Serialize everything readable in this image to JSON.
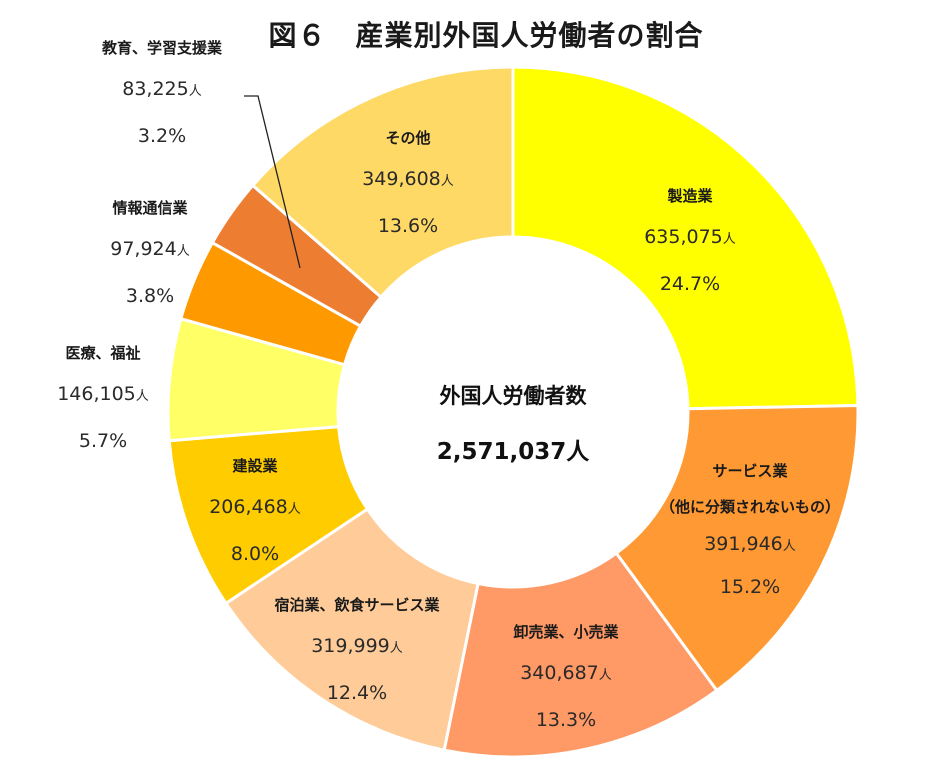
{
  "title": "図６　産業別外国人労働者の割合",
  "center": {
    "label": "外国人労働者数",
    "total": "2,571,037人"
  },
  "unit": "人",
  "colors": {
    "manufacturing": "#FFFF00",
    "services": "#FF9933",
    "wholesale_retail": "#FF9966",
    "accommodation_food": "#FFCC99",
    "construction": "#FFCC00",
    "medical_welfare": "#FFFF66",
    "info_comm": "#FF9900",
    "education": "#ED7D31",
    "other": "#FFD966"
  },
  "chart_data": {
    "type": "pie",
    "subtype": "donut",
    "title": "図６　産業別外国人労働者の割合",
    "center_text": [
      "外国人労働者数",
      "2,571,037人"
    ],
    "total": 2571037,
    "start_angle": "12 o'clock",
    "direction": "clockwise",
    "categories": [
      "製造業",
      "サービス業（他に分類されないもの）",
      "卸売業、小売業",
      "宿泊業、飲食サービス業",
      "建設業",
      "医療、福祉",
      "情報通信業",
      "教育、学習支援業",
      "その他"
    ],
    "values": [
      635075,
      391946,
      340687,
      319999,
      206468,
      146105,
      97924,
      83225,
      349608
    ],
    "percentages": [
      24.7,
      15.2,
      13.3,
      12.4,
      8.0,
      5.7,
      3.8,
      3.2,
      13.6
    ],
    "colors": [
      "#FFFF00",
      "#FF9933",
      "#FF9966",
      "#FFCC99",
      "#FFCC00",
      "#FFFF66",
      "#FF9900",
      "#ED7D31",
      "#FFD966"
    ]
  },
  "labels": [
    {
      "name": "製造業",
      "value": "635,075",
      "pct": "24.7%"
    },
    {
      "name": "サービス業",
      "name2": "（他に分類されないもの）",
      "value": "391,946",
      "pct": "15.2%"
    },
    {
      "name": "卸売業、小売業",
      "value": "340,687",
      "pct": "13.3%"
    },
    {
      "name": "宿泊業、飲食サービス業",
      "value": "319,999",
      "pct": "12.4%"
    },
    {
      "name": "建設業",
      "value": "206,468",
      "pct": "8.0%"
    },
    {
      "name": "医療、福祉",
      "value": "146,105",
      "pct": "5.7%"
    },
    {
      "name": "情報通信業",
      "value": "97,924",
      "pct": "3.8%"
    },
    {
      "name": "教育、学習支援業",
      "value": "83,225",
      "pct": "3.2%"
    },
    {
      "name": "その他",
      "value": "349,608",
      "pct": "13.6%"
    }
  ]
}
